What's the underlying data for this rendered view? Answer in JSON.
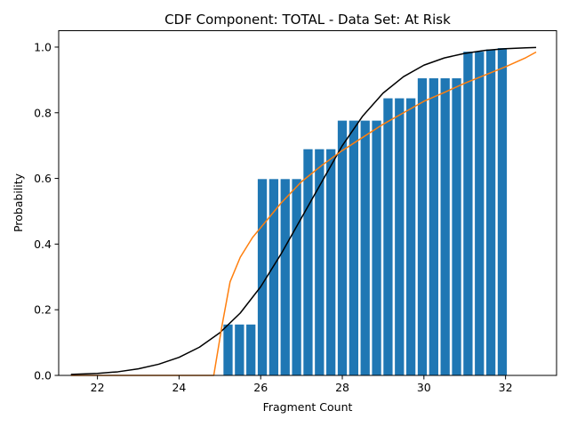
{
  "chart_data": {
    "type": "bar",
    "title": "CDF Component: TOTAL - Data Set: At Risk",
    "xlabel": "Fragment Count",
    "ylabel": "Probability",
    "xlim": [
      21.05,
      33.25
    ],
    "ylim": [
      0,
      1.05
    ],
    "xticks": [
      "22",
      "24",
      "26",
      "28",
      "30",
      "32"
    ],
    "yticks": [
      "0.0",
      "0.2",
      "0.4",
      "0.6",
      "0.8",
      "1.0"
    ],
    "grid": false,
    "legend": "none",
    "colors": {
      "bars": "#1f77b4",
      "normal_cdf": "#000000",
      "fitted_cdf": "#ff7f0e"
    },
    "series": [
      {
        "kind": "bar",
        "x": [
          25.2,
          25.48,
          25.76,
          26.04,
          26.32,
          26.6,
          26.88,
          27.16,
          27.44,
          27.72,
          28.0,
          28.28,
          28.56,
          28.84,
          29.12,
          29.4,
          29.68,
          29.96,
          30.24,
          30.52,
          30.8,
          31.08,
          31.36,
          31.64,
          31.92
        ],
        "values": [
          0.155,
          0.155,
          0.155,
          0.598,
          0.598,
          0.598,
          0.598,
          0.689,
          0.689,
          0.689,
          0.776,
          0.776,
          0.776,
          0.776,
          0.844,
          0.844,
          0.844,
          0.905,
          0.905,
          0.905,
          0.905,
          0.986,
          0.986,
          0.993,
          0.997
        ]
      },
      {
        "kind": "line",
        "x": [
          21.35,
          22.0,
          22.5,
          23.0,
          23.5,
          24.0,
          24.5,
          25.0,
          25.5,
          26.0,
          26.5,
          27.0,
          27.5,
          28.0,
          28.5,
          29.0,
          29.5,
          30.0,
          30.5,
          31.0,
          31.5,
          32.0,
          32.5,
          32.75
        ],
        "values": [
          0.003,
          0.006,
          0.011,
          0.02,
          0.034,
          0.055,
          0.086,
          0.13,
          0.19,
          0.27,
          0.37,
          0.48,
          0.59,
          0.7,
          0.79,
          0.86,
          0.91,
          0.945,
          0.967,
          0.981,
          0.99,
          0.995,
          0.998,
          0.999
        ]
      },
      {
        "kind": "line",
        "x": [
          21.35,
          24.85,
          25.05,
          25.25,
          25.5,
          25.8,
          26.0,
          26.5,
          27.0,
          27.5,
          28.0,
          28.5,
          29.0,
          29.5,
          30.0,
          30.5,
          31.0,
          31.5,
          32.0,
          32.5,
          32.75
        ],
        "values": [
          0.0,
          0.0,
          0.15,
          0.285,
          0.36,
          0.42,
          0.45,
          0.525,
          0.59,
          0.64,
          0.685,
          0.725,
          0.765,
          0.8,
          0.835,
          0.862,
          0.89,
          0.915,
          0.94,
          0.968,
          0.985
        ]
      }
    ]
  }
}
